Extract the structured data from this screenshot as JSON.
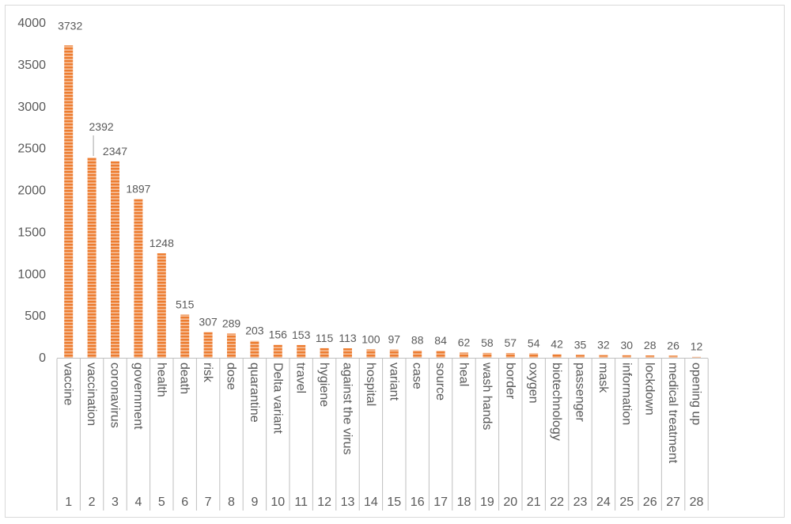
{
  "chart_data": {
    "type": "bar",
    "title": "",
    "xlabel": "",
    "ylabel": "",
    "ylim": [
      0,
      4000
    ],
    "yticks": [
      0,
      500,
      1000,
      1500,
      2000,
      2500,
      3000,
      3500,
      4000
    ],
    "grid": false,
    "legend": "none",
    "bar_color": "#ED7D31",
    "bar_pattern": "horizontal-stripes",
    "categories": [
      "vaccine",
      "vaccination",
      "coronavirus",
      "government",
      "health",
      "death",
      "risk",
      "dose",
      "quarantine",
      "Delta variant",
      "travel",
      "hygiene",
      "against the virus",
      "hospital",
      "variant",
      "case",
      "source",
      "heal",
      "wash hands",
      "border",
      "oxygen",
      "biotechnology",
      "passenger",
      "mask",
      "information",
      "lockdown",
      "medical treatment",
      "opening up"
    ],
    "indices": [
      "1",
      "2",
      "3",
      "4",
      "5",
      "6",
      "7",
      "8",
      "9",
      "10",
      "11",
      "12",
      "13",
      "14",
      "15",
      "16",
      "17",
      "18",
      "19",
      "20",
      "21",
      "22",
      "23",
      "24",
      "25",
      "26",
      "27",
      "28"
    ],
    "values": [
      3732,
      2392,
      2347,
      1897,
      1248,
      515,
      307,
      289,
      203,
      156,
      153,
      115,
      113,
      100,
      97,
      88,
      84,
      62,
      58,
      57,
      54,
      42,
      35,
      32,
      30,
      28,
      26,
      12
    ]
  }
}
